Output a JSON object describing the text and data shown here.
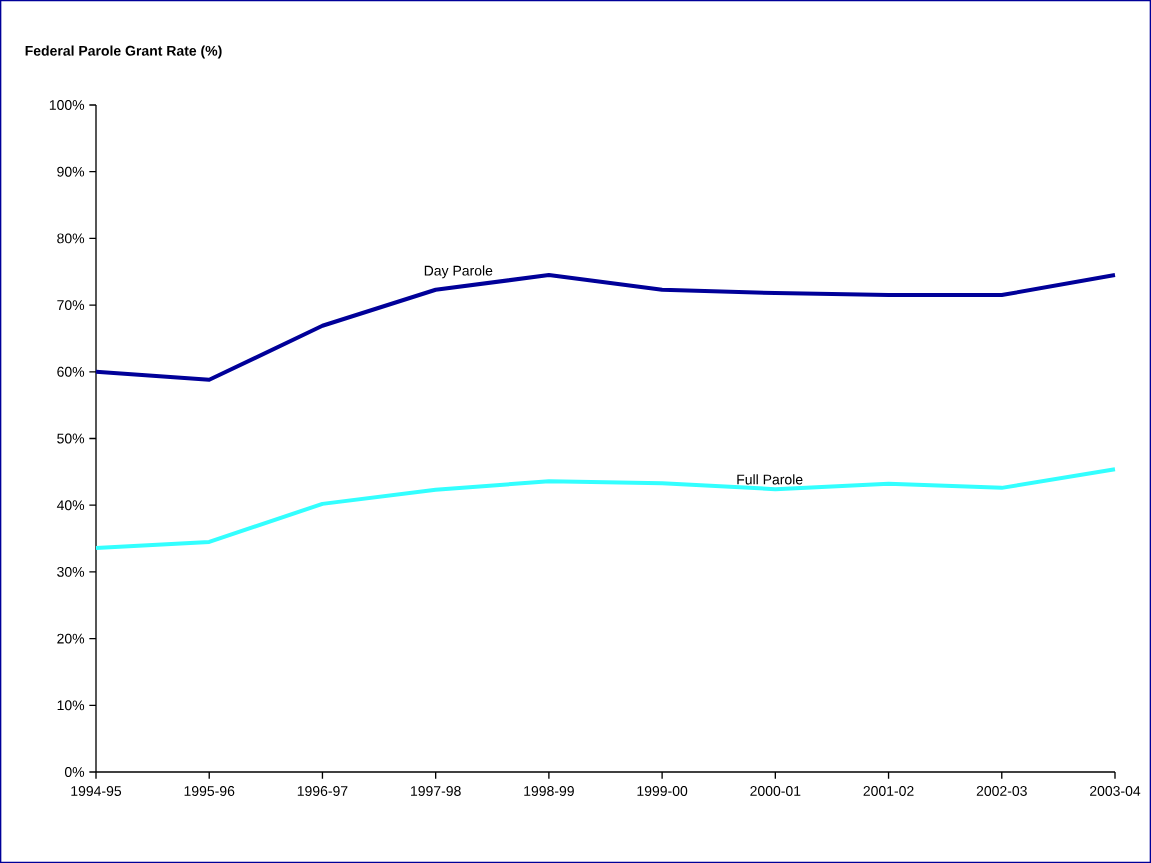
{
  "chart_data": {
    "type": "line",
    "title": "Federal Parole Grant Rate (%)",
    "categories": [
      "1994-95",
      "1995-96",
      "1996-97",
      "1997-98",
      "1998-99",
      "1999-00",
      "2000-01",
      "2001-02",
      "2002-03",
      "2003-04"
    ],
    "series": [
      {
        "name": "Day Parole",
        "color": "#000099",
        "values": [
          60.0,
          58.8,
          66.9,
          72.3,
          74.5,
          72.3,
          71.8,
          71.5,
          71.5,
          74.5
        ]
      },
      {
        "name": "Full Parole",
        "color": "#33ffff",
        "values": [
          33.6,
          34.5,
          40.2,
          42.3,
          43.6,
          43.3,
          42.4,
          43.2,
          42.6,
          45.4
        ]
      }
    ],
    "ylim": [
      0,
      100
    ],
    "yticks": [
      {
        "value": 0,
        "label": "0%"
      },
      {
        "value": 10,
        "label": "10%"
      },
      {
        "value": 20,
        "label": "20%"
      },
      {
        "value": 30,
        "label": "30%"
      },
      {
        "value": 40,
        "label": "40%"
      },
      {
        "value": 50,
        "label": "50%"
      },
      {
        "value": 60,
        "label": "60%"
      },
      {
        "value": 70,
        "label": "70%"
      },
      {
        "value": 80,
        "label": "80%"
      },
      {
        "value": 90,
        "label": "90%"
      },
      {
        "value": 100,
        "label": "100%"
      }
    ],
    "grid": false,
    "legend": false,
    "marker": "none",
    "line_style": "solid"
  }
}
